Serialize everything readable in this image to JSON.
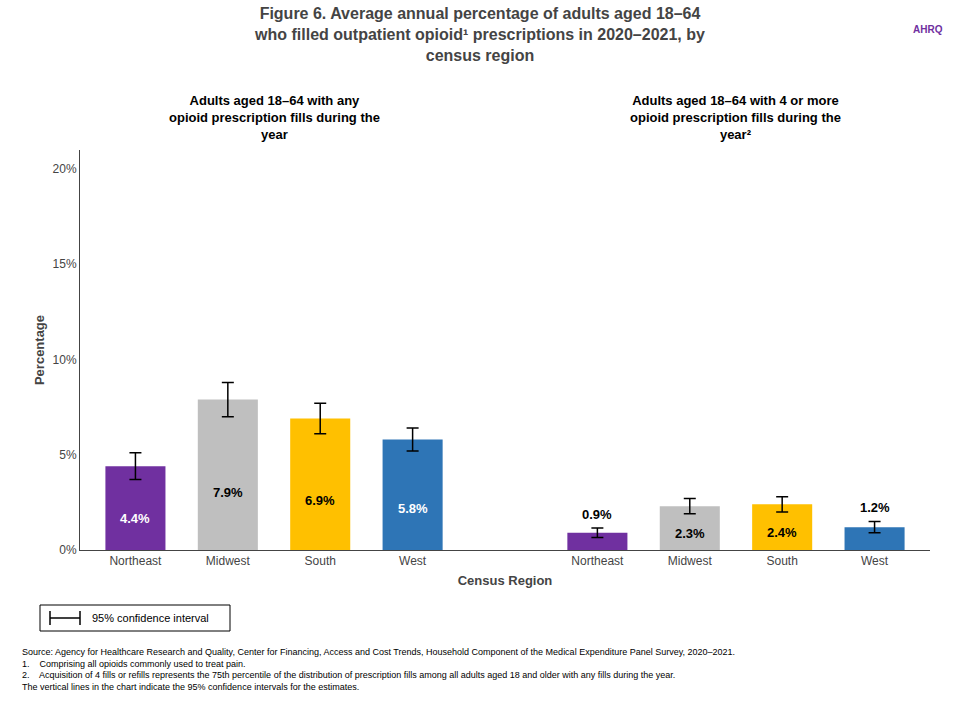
{
  "chart_data": {
    "type": "bar",
    "title": "Figure 6. Average annual percentage of adults aged 18–64\nwho filled outpatient opioid¹ prescriptions in 2020–2021, by\ncensus region",
    "categories": [
      "Northeast",
      "Midwest",
      "South",
      "West",
      "Northeast",
      "Midwest",
      "South",
      "West"
    ],
    "values": [
      4.4,
      7.9,
      6.9,
      5.8,
      0.9,
      2.3,
      2.4,
      1.2
    ],
    "value_labels": [
      "4.4%",
      "7.9%",
      "6.9%",
      "5.8%",
      "0.9%",
      "2.3%",
      "2.4%",
      "1.2%"
    ],
    "errors": [
      0.7,
      0.9,
      0.8,
      0.6,
      0.25,
      0.4,
      0.4,
      0.3
    ],
    "colors": [
      "#7030a0",
      "#bfbfbf",
      "#ffc000",
      "#2e75b6",
      "#7030a0",
      "#bfbfbf",
      "#ffc000",
      "#2e75b6"
    ],
    "label_colors": [
      "#ffffff",
      "#000000",
      "#000000",
      "#ffffff",
      "#000000",
      "#000000",
      "#000000",
      "#000000"
    ],
    "group_labels": [
      "Adults aged 18–64 with any\nopioid prescription fills during the\nyear",
      "Adults aged 18–64 with 4 or more\nopioid prescription fills during the\nyear²"
    ],
    "ylabel": "Percentage",
    "xlabel": "Census Region",
    "ylim": [
      0,
      21
    ],
    "yticks": [
      {
        "value": 0,
        "label": "0%"
      },
      {
        "value": 5,
        "label": "5%"
      },
      {
        "value": 10,
        "label": "10%"
      },
      {
        "value": 15,
        "label": "15%"
      },
      {
        "value": 20,
        "label": "20%"
      }
    ],
    "grid": false,
    "data_labels": true,
    "error_label": "95% confidence interval",
    "logo": "AHRQ",
    "notes": [
      "Source: Agency for Healthcare Research and Quality, Center for Financing, Access and Cost Trends, Household Component of the Medical Expenditure Panel Survey, 2020–2021.",
      "1.    Comprising all opioids commonly used to treat pain.",
      "2.    Acquisition of 4 fills or refills represents the 75th percentile of the distribution of prescription fills among all adults aged 18 and older with any fills during the year.",
      "The vertical lines in the chart indicate the 95% confidence intervals for the estimates."
    ]
  }
}
